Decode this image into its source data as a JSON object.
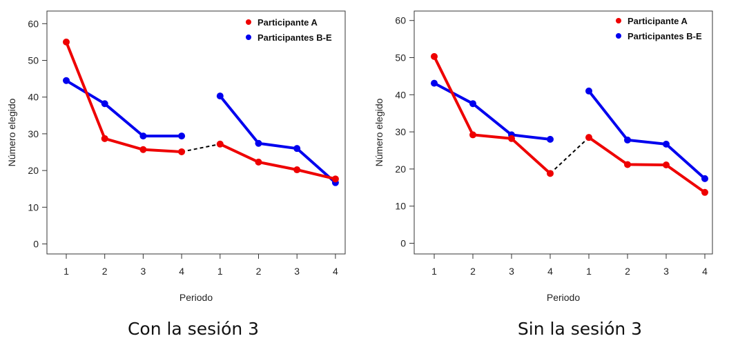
{
  "chart_data": [
    {
      "type": "line",
      "title": "",
      "caption": "Con la sesión 3",
      "xlabel": "Periodo",
      "ylabel": "Número elegido",
      "x_tick_labels": [
        "1",
        "2",
        "3",
        "4",
        "1",
        "2",
        "3",
        "4"
      ],
      "y_ticks": [
        0,
        10,
        20,
        30,
        40,
        50,
        60
      ],
      "ylim": [
        -2,
        62
      ],
      "legend_position": "top-right",
      "series": [
        {
          "name": "Participante A",
          "color": "#ee0000",
          "segments": [
            [
              55,
              28.7,
              25.7,
              25.1
            ],
            [
              27.2,
              22.3,
              20.2,
              17.7
            ]
          ]
        },
        {
          "name": "Participantes B-E",
          "color": "#0000ee",
          "segments": [
            [
              44.5,
              38.2,
              29.4,
              29.4
            ],
            [
              40.3,
              27.4,
              26.0,
              16.7
            ]
          ]
        }
      ],
      "connector": {
        "style": "dotted",
        "color": "#000000",
        "from": 25.1,
        "to": 27.2
      }
    },
    {
      "type": "line",
      "title": "",
      "caption": "Sin la sesión 3",
      "xlabel": "Periodo",
      "ylabel": "Número elegido",
      "x_tick_labels": [
        "1",
        "2",
        "3",
        "4",
        "1",
        "2",
        "3",
        "4"
      ],
      "y_ticks": [
        0,
        10,
        20,
        30,
        40,
        50,
        60
      ],
      "ylim": [
        -2,
        62
      ],
      "legend_position": "top-right",
      "series": [
        {
          "name": "Participante A",
          "color": "#ee0000",
          "segments": [
            [
              50.3,
              29.2,
              28.2,
              18.8
            ],
            [
              28.5,
              21.2,
              21.1,
              13.7
            ]
          ]
        },
        {
          "name": "Participantes B-E",
          "color": "#0000ee",
          "segments": [
            [
              43.1,
              37.6,
              29.2,
              28.0
            ],
            [
              41.0,
              27.8,
              26.7,
              17.4
            ]
          ]
        }
      ],
      "connector": {
        "style": "dotted",
        "color": "#000000",
        "from": 18.8,
        "to": 28.5
      }
    }
  ]
}
